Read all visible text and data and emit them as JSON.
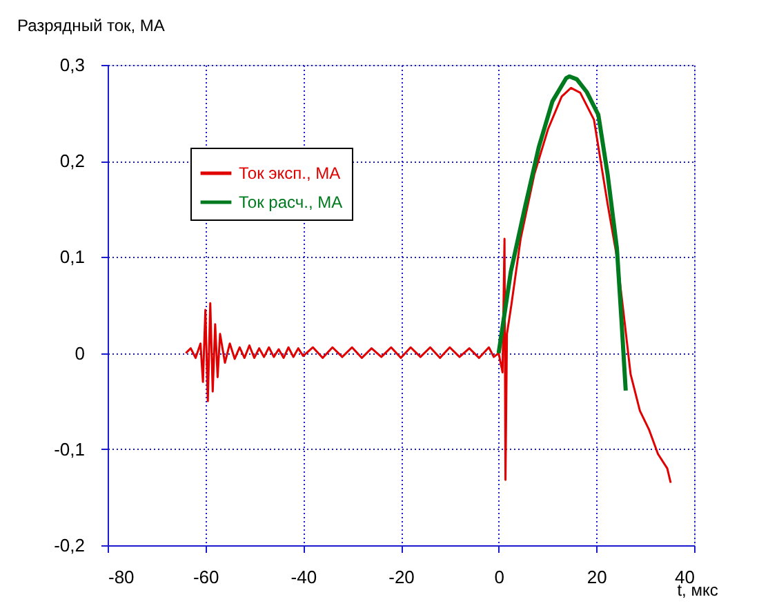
{
  "chart_data": {
    "type": "line",
    "xlabel": "t, мкс",
    "ylabel": "Разрядный ток, МА",
    "xlim": [
      -80,
      40
    ],
    "xticks": [
      -80,
      -60,
      -40,
      -20,
      0,
      20,
      40
    ],
    "ylim": [
      -0.2,
      0.3
    ],
    "yticks": [
      {
        "value": -0.2,
        "label": "-0,2"
      },
      {
        "value": -0.1,
        "label": "-0,1"
      },
      0,
      {
        "value": 0.1,
        "label": "0,1"
      },
      {
        "value": 0.2,
        "label": "0,2"
      },
      {
        "value": 0.3,
        "label": "0,3"
      }
    ],
    "grid": true,
    "legend": "top left",
    "marker": "none",
    "line_style": "solid",
    "series": [
      {
        "name": "Ток эксп., МА",
        "color": "#e00000",
        "x": [
          -64,
          -63,
          -62,
          -61,
          -60.5,
          -60,
          -59.5,
          -59,
          -58.5,
          -58,
          -57.5,
          -57,
          -56,
          -55,
          -54,
          -53,
          -52,
          -51,
          -50,
          -49,
          -48,
          -47,
          -46,
          -45,
          -44,
          -43,
          -42,
          -41,
          -40,
          -38,
          -36,
          -34,
          -32,
          -30,
          -28,
          -26,
          -24,
          -22,
          -20,
          -18,
          -16,
          -14,
          -12,
          -10,
          -8,
          -6,
          -4,
          -2,
          -1,
          0,
          0.8,
          1.2,
          1.4,
          1.7,
          2.6,
          4.5,
          7.3,
          10.1,
          12.9,
          14.8,
          16.7,
          19.5,
          22.3,
          24.2,
          25.6,
          27,
          28.9,
          30.8,
          32.6,
          34.5,
          35.2
        ],
        "values": [
          0,
          0.005,
          -0.005,
          0.01,
          -0.03,
          0.045,
          -0.05,
          0.052,
          -0.04,
          0.03,
          -0.025,
          0.02,
          -0.01,
          0.01,
          -0.006,
          0.006,
          -0.005,
          0.008,
          -0.005,
          0.005,
          -0.004,
          0.006,
          -0.004,
          0.004,
          -0.005,
          0.006,
          -0.004,
          0.005,
          -0.003,
          0.006,
          -0.005,
          0.006,
          -0.004,
          0.006,
          -0.005,
          0.005,
          -0.004,
          0.006,
          -0.005,
          0.006,
          -0.004,
          0.006,
          -0.005,
          0.006,
          -0.004,
          0.005,
          -0.005,
          0.006,
          -0.004,
          0,
          -0.02,
          0.119,
          -0.132,
          0.02,
          0.05,
          0.119,
          0.186,
          0.233,
          0.267,
          0.276,
          0.271,
          0.243,
          0.155,
          0.1,
          0.04,
          -0.022,
          -0.06,
          -0.08,
          -0.105,
          -0.12,
          -0.135
        ]
      },
      {
        "name": "Ток расч., МА",
        "color": "#007a1e",
        "x": [
          0,
          2.5,
          5.4,
          8.2,
          11,
          13.8,
          14.5,
          16,
          18,
          20.4,
          22.3,
          24.2,
          25.1,
          26
        ],
        "values": [
          0,
          0.085,
          0.152,
          0.214,
          0.262,
          0.286,
          0.288,
          0.285,
          0.272,
          0.248,
          0.186,
          0.109,
          0.037,
          -0.039
        ]
      }
    ]
  }
}
